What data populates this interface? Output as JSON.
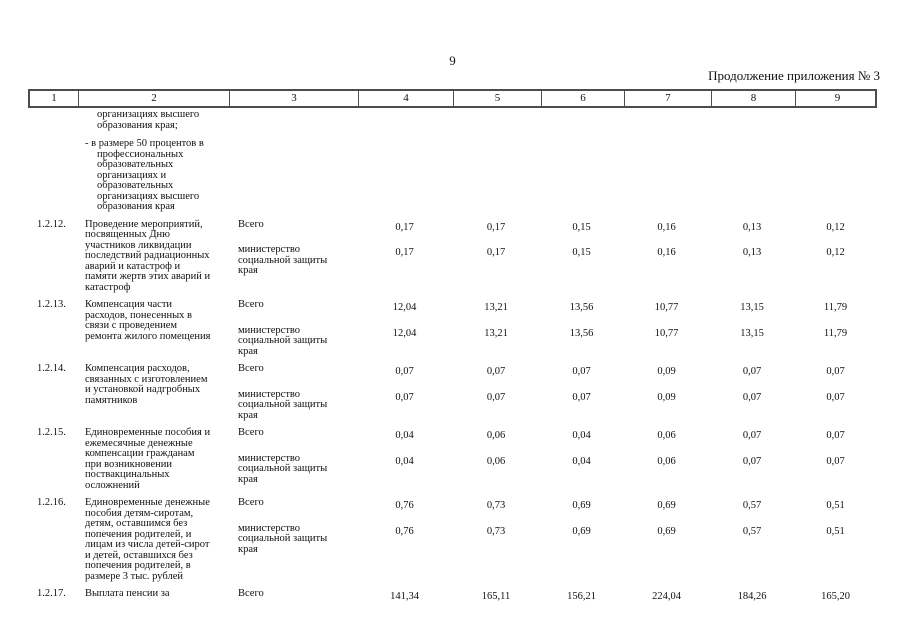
{
  "page": {
    "number": "9",
    "continuation_note": "Продолжение приложения № 3"
  },
  "table": {
    "columns": [
      "1",
      "2",
      "3",
      "4",
      "5",
      "6",
      "7",
      "8",
      "9"
    ],
    "carryover": {
      "para1": "организациях высшего образования края;",
      "para2": "- в размере 50 процентов в профессиональных образовательных организациях и образовательных организациях высшего образования края"
    },
    "rows": [
      {
        "num": "1.2.12.",
        "description": "Проведение мероприятий, посвященных Дню участников ликвидации последствий радиационных аварий и катастроф и памяти жертв этих аварий и катастроф",
        "lines": [
          {
            "executor": "Всего",
            "values": [
              "0,17",
              "0,17",
              "0,15",
              "0,16",
              "0,13",
              "0,12"
            ]
          },
          {
            "executor": "министерство социальной защиты края",
            "values": [
              "0,17",
              "0,17",
              "0,15",
              "0,16",
              "0,13",
              "0,12"
            ]
          }
        ]
      },
      {
        "num": "1.2.13.",
        "description": "Компенсация части расходов, понесенных в связи с проведением ремонта жилого помещения",
        "lines": [
          {
            "executor": "Всего",
            "values": [
              "12,04",
              "13,21",
              "13,56",
              "10,77",
              "13,15",
              "11,79"
            ]
          },
          {
            "executor": "министерство социальной защиты края",
            "values": [
              "12,04",
              "13,21",
              "13,56",
              "10,77",
              "13,15",
              "11,79"
            ]
          }
        ]
      },
      {
        "num": "1.2.14.",
        "description": "Компенсация расходов, связанных с изготовлением и установкой надгробных памятников",
        "lines": [
          {
            "executor": "Всего",
            "values": [
              "0,07",
              "0,07",
              "0,07",
              "0,09",
              "0,07",
              "0,07"
            ]
          },
          {
            "executor": "министерство социальной защиты края",
            "values": [
              "0,07",
              "0,07",
              "0,07",
              "0,09",
              "0,07",
              "0,07"
            ]
          }
        ]
      },
      {
        "num": "1.2.15.",
        "description": "Единовременные пособия и ежемесячные денежные компенсации гражданам при возникновении поствакцинальных осложнений",
        "lines": [
          {
            "executor": "Всего",
            "values": [
              "0,04",
              "0,06",
              "0,04",
              "0,06",
              "0,07",
              "0,07"
            ]
          },
          {
            "executor": "министерство социальной защиты края",
            "values": [
              "0,04",
              "0,06",
              "0,04",
              "0,06",
              "0,07",
              "0,07"
            ]
          }
        ]
      },
      {
        "num": "1.2.16.",
        "description": "Единовременные денежные пособия детям-сиротам, детям, оставшимся без попечения родителей, и лицам из числа детей-сирот и детей, оставшихся без попечения родителей, в размере 3 тыс. рублей",
        "lines": [
          {
            "executor": "Всего",
            "values": [
              "0,76",
              "0,73",
              "0,69",
              "0,69",
              "0,57",
              "0,51"
            ]
          },
          {
            "executor": "министерство социальной защиты края",
            "values": [
              "0,76",
              "0,73",
              "0,69",
              "0,69",
              "0,57",
              "0,51"
            ]
          }
        ]
      },
      {
        "num": "1.2.17.",
        "description": "Выплата пенсии за",
        "lines": [
          {
            "executor": "Всего",
            "values": [
              "141,34",
              "165,11",
              "156,21",
              "224,04",
              "184,26",
              "165,20"
            ]
          }
        ]
      }
    ]
  }
}
